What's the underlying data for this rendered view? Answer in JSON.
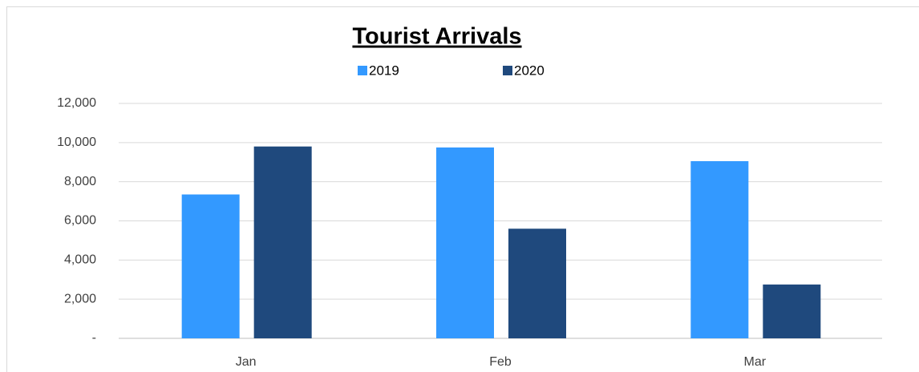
{
  "chart_data": {
    "type": "bar",
    "title": "Tourist Arrivals",
    "categories": [
      "Jan",
      "Feb",
      "Mar"
    ],
    "series": [
      {
        "name": "2019",
        "color": "#3399ff",
        "values": [
          7350,
          9750,
          9050
        ]
      },
      {
        "name": "2020",
        "color": "#1f497d",
        "values": [
          9800,
          5600,
          2750
        ]
      }
    ],
    "ylim": [
      0,
      12000
    ],
    "yticks": [
      {
        "value": 0,
        "label": "-"
      },
      {
        "value": 2000,
        "label": "2,000"
      },
      {
        "value": 4000,
        "label": "4,000"
      },
      {
        "value": 6000,
        "label": "6,000"
      },
      {
        "value": 8000,
        "label": "8,000"
      },
      {
        "value": 10000,
        "label": "10,000"
      },
      {
        "value": 12000,
        "label": "12,000"
      }
    ],
    "grid": true,
    "legend": "top"
  }
}
